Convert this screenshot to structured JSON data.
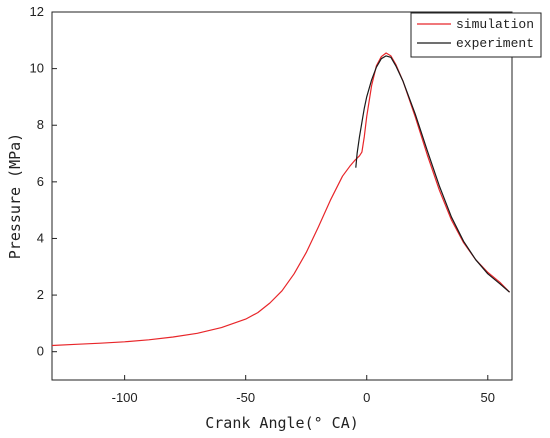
{
  "chart_data": {
    "type": "line",
    "title": "",
    "xlabel": "Crank Angle(° CA)",
    "ylabel": "Pressure (MPa)",
    "xlim": [
      -130,
      60
    ],
    "ylim": [
      -1,
      12
    ],
    "x_ticks": [
      {
        "value": -100,
        "label": "-100"
      },
      {
        "value": -50,
        "label": "-50"
      },
      {
        "value": 0,
        "label": "0"
      },
      {
        "value": 50,
        "label": "50"
      }
    ],
    "y_ticks": [
      {
        "value": 0,
        "label": "0"
      },
      {
        "value": 2,
        "label": "2"
      },
      {
        "value": 4,
        "label": "4"
      },
      {
        "value": 6,
        "label": "6"
      },
      {
        "value": 8,
        "label": "8"
      },
      {
        "value": 10,
        "label": "10"
      },
      {
        "value": 12,
        "label": "12"
      }
    ],
    "legend_position": "top-right",
    "grid": false,
    "series": [
      {
        "name": "simulation",
        "color": "#e8262a",
        "points": [
          [
            -130,
            0.22
          ],
          [
            -120,
            0.26
          ],
          [
            -110,
            0.3
          ],
          [
            -100,
            0.35
          ],
          [
            -90,
            0.42
          ],
          [
            -80,
            0.52
          ],
          [
            -70,
            0.65
          ],
          [
            -60,
            0.85
          ],
          [
            -50,
            1.15
          ],
          [
            -45,
            1.38
          ],
          [
            -40,
            1.72
          ],
          [
            -35,
            2.15
          ],
          [
            -30,
            2.75
          ],
          [
            -25,
            3.5
          ],
          [
            -20,
            4.4
          ],
          [
            -15,
            5.35
          ],
          [
            -10,
            6.2
          ],
          [
            -7,
            6.55
          ],
          [
            -5,
            6.75
          ],
          [
            -3,
            6.92
          ],
          [
            -2,
            7.05
          ],
          [
            -1,
            7.6
          ],
          [
            0,
            8.3
          ],
          [
            2,
            9.4
          ],
          [
            4,
            10.1
          ],
          [
            6,
            10.42
          ],
          [
            8,
            10.55
          ],
          [
            10,
            10.45
          ],
          [
            12,
            10.15
          ],
          [
            15,
            9.55
          ],
          [
            20,
            8.3
          ],
          [
            25,
            6.95
          ],
          [
            30,
            5.7
          ],
          [
            35,
            4.65
          ],
          [
            40,
            3.85
          ],
          [
            45,
            3.25
          ],
          [
            50,
            2.8
          ],
          [
            55,
            2.45
          ],
          [
            59,
            2.1
          ]
        ]
      },
      {
        "name": "experiment",
        "color": "#1a1a1a",
        "points": [
          [
            -4.5,
            6.5
          ],
          [
            -4,
            7.0
          ],
          [
            -3,
            7.6
          ],
          [
            -2,
            8.1
          ],
          [
            -1,
            8.6
          ],
          [
            0,
            9.0
          ],
          [
            2,
            9.6
          ],
          [
            4,
            10.05
          ],
          [
            6,
            10.35
          ],
          [
            8,
            10.45
          ],
          [
            10,
            10.4
          ],
          [
            12,
            10.1
          ],
          [
            15,
            9.55
          ],
          [
            20,
            8.4
          ],
          [
            25,
            7.1
          ],
          [
            30,
            5.85
          ],
          [
            35,
            4.75
          ],
          [
            40,
            3.9
          ],
          [
            45,
            3.25
          ],
          [
            50,
            2.75
          ],
          [
            55,
            2.4
          ],
          [
            59,
            2.1
          ]
        ]
      }
    ]
  }
}
